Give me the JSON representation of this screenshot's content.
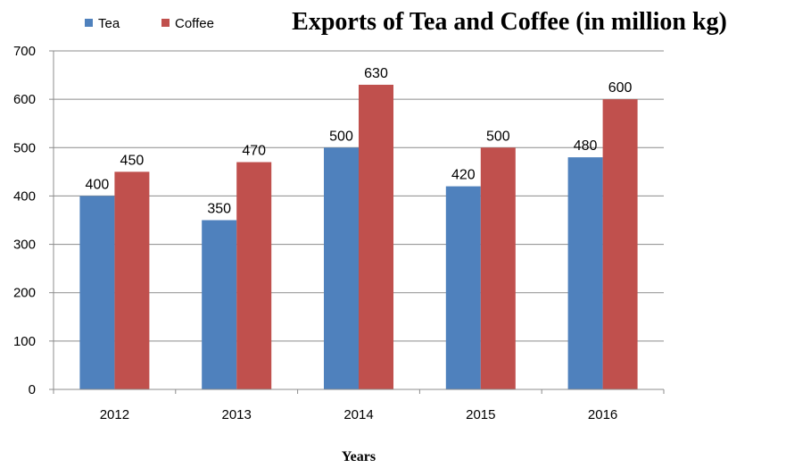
{
  "chart_data": {
    "type": "bar",
    "title": "Exports of Tea and Coffee (in million kg)",
    "xlabel": "Years",
    "ylabel": "",
    "categories": [
      "2012",
      "2013",
      "2014",
      "2015",
      "2016"
    ],
    "series": [
      {
        "name": "Tea",
        "values": [
          400,
          350,
          500,
          420,
          480
        ],
        "color": "#4F81BD"
      },
      {
        "name": "Coffee",
        "values": [
          450,
          470,
          630,
          500,
          600
        ],
        "color": "#C0504D"
      }
    ],
    "ylim": [
      0,
      700
    ],
    "yticks": [
      0,
      100,
      200,
      300,
      400,
      500,
      600,
      700
    ],
    "grid": true,
    "legend_position": "top-left",
    "data_labels": true
  }
}
